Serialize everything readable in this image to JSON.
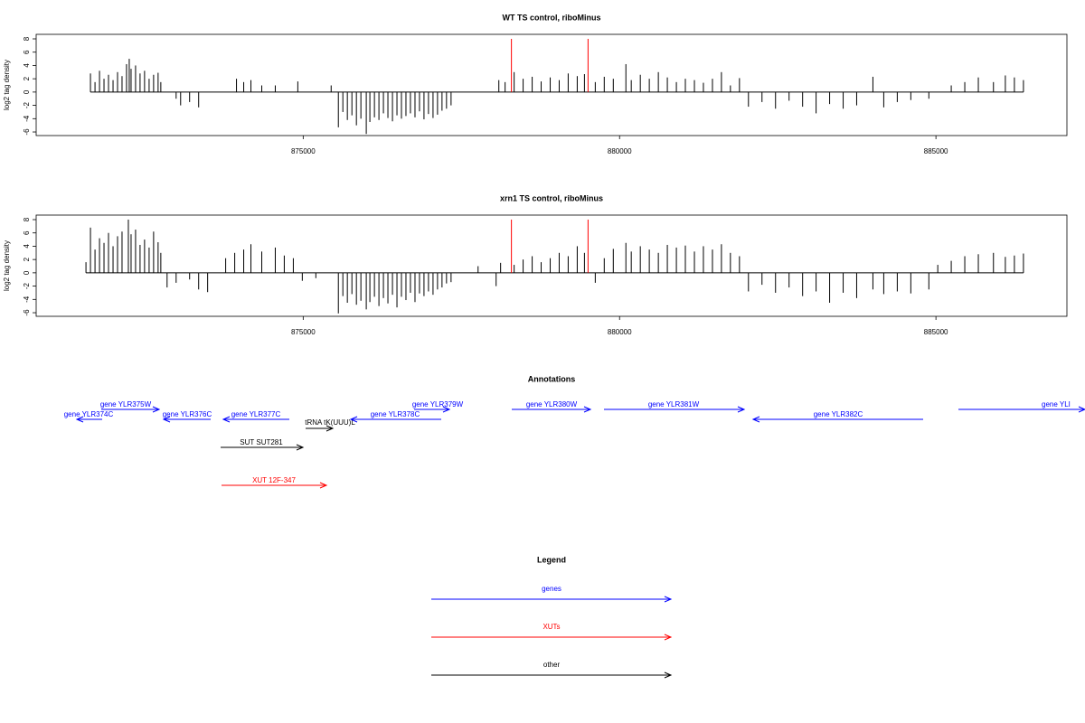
{
  "chart_data": [
    {
      "type": "bar",
      "title": "WT TS control, riboMinus",
      "ylabel": "log2 tag density",
      "xlim": [
        870780,
        887070
      ],
      "ylim": [
        -6.54,
        8.68
      ],
      "xticks": [
        875000,
        880000,
        885000
      ],
      "yticks": [
        -6,
        -4,
        -2,
        0,
        2,
        4,
        6,
        8
      ],
      "series": [
        {
          "color": "#000000",
          "x": [
            871638,
            871710,
            871781,
            871852,
            871923,
            871995,
            872066,
            872137,
            872208,
            872251,
            872280,
            872351,
            872422,
            872493,
            872565,
            872636,
            872707,
            872750,
            872992,
            873063,
            873205,
            873348,
            873946,
            874060,
            874174,
            874345,
            874559,
            874915,
            875442,
            875556,
            875627,
            875698,
            875770,
            875841,
            875912,
            875997,
            876054,
            876126,
            876197,
            876268,
            876339,
            876411,
            876482,
            876553,
            876624,
            876695,
            876767,
            876838,
            876909,
            876980,
            877052,
            877123,
            877194,
            877265,
            877337,
            878092,
            878191,
            878334,
            878476,
            878619,
            878761,
            878904,
            879046,
            879188,
            879331,
            879445,
            879616,
            879758,
            879901,
            880100,
            880185,
            880328,
            880470,
            880613,
            880755,
            880898,
            881040,
            881183,
            881325,
            881468,
            881610,
            881752,
            881895,
            882037,
            882251,
            882465,
            882679,
            882893,
            883106,
            883320,
            883534,
            883747,
            884004,
            884175,
            884389,
            884603,
            884888,
            885242,
            885456,
            885670,
            885909,
            886097,
            886240,
            886383
          ],
          "values": [
            2.8,
            1.5,
            3.2,
            2,
            2.6,
            1.8,
            3,
            2.4,
            4.2,
            5,
            3.5,
            4,
            2.8,
            3.2,
            2,
            2.6,
            2.9,
            1.5,
            -1,
            -2,
            -1.5,
            -2.3,
            2,
            1.5,
            1.8,
            1,
            1,
            1.6,
            1,
            -5.3,
            -3,
            -4.2,
            -3.5,
            -5,
            -4,
            -6.3,
            -4.5,
            -3.8,
            -4.2,
            -3.2,
            -3.9,
            -4.4,
            -3.5,
            -4,
            -3.6,
            -3.2,
            -3.8,
            -2.9,
            -4.1,
            -3.3,
            -3.9,
            -3.4,
            -2.8,
            -2.5,
            -2,
            1.8,
            1.5,
            3,
            2,
            2.3,
            1.6,
            2.2,
            1.8,
            2.8,
            2.4,
            2.7,
            1.5,
            2.3,
            2,
            4.2,
            1.8,
            2.6,
            2,
            3,
            2.2,
            1.5,
            2,
            1.8,
            1.4,
            2,
            3,
            1,
            2.1,
            -2.2,
            -1.5,
            -2.5,
            -1.3,
            -2.2,
            -3.2,
            -1.8,
            -2.5,
            -2,
            2.3,
            -2.3,
            -1.5,
            -1.2,
            -1,
            1,
            1.5,
            2.2,
            1.5,
            2.5,
            2.2,
            1.8
          ]
        },
        {
          "color": "#ff0000",
          "x": [
            878291,
            879502
          ],
          "values": [
            8,
            8
          ]
        }
      ]
    },
    {
      "type": "bar",
      "title": "xrn1 TS control, riboMinus",
      "ylabel": "log2 tag density",
      "xlim": [
        870780,
        887070
      ],
      "ylim": [
        -6.54,
        8.68
      ],
      "xticks": [
        875000,
        880000,
        885000
      ],
      "yticks": [
        -6,
        -4,
        -2,
        0,
        2,
        4,
        6,
        8
      ],
      "series": [
        {
          "color": "#000000",
          "x": [
            871567,
            871638,
            871710,
            871781,
            871852,
            871923,
            871995,
            872066,
            872137,
            872237,
            872280,
            872351,
            872422,
            872493,
            872565,
            872636,
            872707,
            872750,
            872849,
            872992,
            873205,
            873348,
            873490,
            873775,
            873918,
            874060,
            874174,
            874345,
            874559,
            874701,
            874844,
            874986,
            875200,
            875556,
            875627,
            875698,
            875770,
            875841,
            875912,
            875997,
            876054,
            876126,
            876197,
            876268,
            876339,
            876411,
            876482,
            876553,
            876624,
            876695,
            876767,
            876838,
            876909,
            876980,
            877052,
            877123,
            877194,
            877265,
            877337,
            877764,
            878049,
            878120,
            878334,
            878476,
            878619,
            878761,
            878904,
            879046,
            879188,
            879331,
            879445,
            879616,
            879758,
            879901,
            880100,
            880185,
            880328,
            880470,
            880613,
            880755,
            880898,
            881040,
            881183,
            881325,
            881468,
            881610,
            881752,
            881895,
            882037,
            882251,
            882465,
            882679,
            882893,
            883106,
            883320,
            883534,
            883747,
            884004,
            884175,
            884389,
            884603,
            884888,
            885029,
            885242,
            885456,
            885670,
            885909,
            886097,
            886240,
            886383
          ],
          "values": [
            1.6,
            6.8,
            3.5,
            5.2,
            4.5,
            6,
            4,
            5.5,
            6.2,
            8,
            5.8,
            6.5,
            4.2,
            5,
            3.8,
            6.2,
            4.6,
            3,
            -2.2,
            -1.5,
            -1,
            -2.5,
            -2.9,
            2.2,
            3,
            3.5,
            4.3,
            3.2,
            3.8,
            2.6,
            2.2,
            -1.2,
            -0.8,
            -6.1,
            -3.5,
            -4.5,
            -3.2,
            -4.8,
            -4.2,
            -5.5,
            -4.4,
            -3.6,
            -5,
            -3.8,
            -4.6,
            -3.3,
            -5.2,
            -3.6,
            -4.1,
            -3,
            -4.4,
            -3.1,
            -3.5,
            -2.8,
            -3.3,
            -2.5,
            -2.2,
            -1.6,
            -1.4,
            1,
            -2,
            1.5,
            1.2,
            2,
            2.5,
            1.6,
            2.2,
            3,
            2.5,
            4,
            3,
            -1.5,
            2.2,
            3.6,
            4.5,
            3.2,
            4,
            3.5,
            3,
            4.2,
            3.8,
            4.1,
            3.2,
            4,
            3.5,
            4.3,
            3,
            2.5,
            -2.8,
            -1.8,
            -3,
            -2.2,
            -3.5,
            -2.8,
            -4.5,
            -3,
            -3.8,
            -2.5,
            -3.2,
            -2.8,
            -3.1,
            -2.5,
            1.2,
            1.8,
            2.5,
            2.8,
            3,
            2.4,
            2.6,
            2.9
          ]
        },
        {
          "color": "#ff0000",
          "x": [
            878291,
            879502
          ],
          "values": [
            8,
            8
          ]
        }
      ]
    }
  ],
  "annotations": {
    "title": "Annotations",
    "features": [
      {
        "label": "gene YLR374C",
        "color": "#0000ff"
      },
      {
        "label": "gene YLR375W",
        "color": "#0000ff"
      },
      {
        "label": "gene YLR376C",
        "color": "#0000ff"
      },
      {
        "label": "gene YLR377C",
        "color": "#0000ff"
      },
      {
        "label": "tRNA tK(UUU)L",
        "color": "#000000"
      },
      {
        "label": "gene YLR378C",
        "color": "#0000ff"
      },
      {
        "label": "gene YLR379W",
        "color": "#0000ff"
      },
      {
        "label": "SUT SUT281",
        "color": "#000000"
      },
      {
        "label": "XUT 12F-347",
        "color": "#ff0000"
      },
      {
        "label": "gene YLR380W",
        "color": "#0000ff"
      },
      {
        "label": "gene YLR381W",
        "color": "#0000ff"
      },
      {
        "label": "gene YLR382C",
        "color": "#0000ff"
      },
      {
        "label": "gene YLI",
        "color": "#0000ff"
      }
    ]
  },
  "legend": {
    "title": "Legend",
    "items": [
      {
        "label": "genes",
        "color": "#0000ff"
      },
      {
        "label": "XUTs",
        "color": "#ff0000"
      },
      {
        "label": "other",
        "color": "#000000"
      }
    ]
  }
}
